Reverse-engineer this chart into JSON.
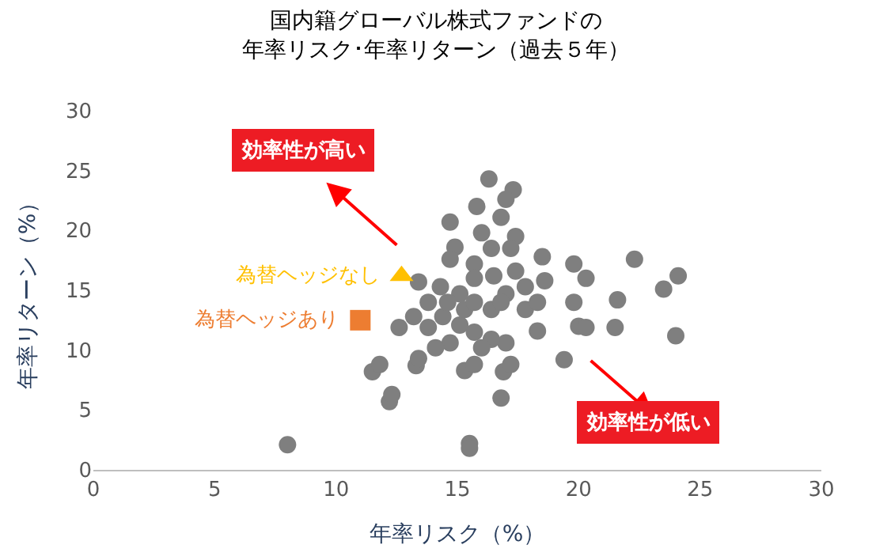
{
  "chart_data": {
    "type": "scatter",
    "title": "国内籍グローバル株式ファンドの",
    "subtitle": "年率リスク･年率リターン（過去５年）",
    "xlabel": "年率リスク（%）",
    "ylabel": "年率リターン（%）",
    "xlim": [
      0,
      30
    ],
    "xticks": [
      0,
      5,
      10,
      15,
      20,
      25,
      30
    ],
    "ylim": [
      0,
      30
    ],
    "yticks": [
      0,
      5,
      10,
      15,
      20,
      25,
      30
    ],
    "legend": false,
    "series": [
      {
        "color": "#7f7f7f",
        "marker": "circle",
        "x": [
          8.0,
          15.5,
          15.5,
          12.2,
          12.3,
          11.5,
          11.8,
          13.3,
          13.4,
          15.3,
          15.7,
          16.9,
          17.2,
          16.8,
          19.4,
          17.0,
          18.3,
          20.0,
          20.3,
          21.5,
          24.0,
          19.8,
          21.6,
          23.5,
          24.1,
          20.3,
          19.8,
          22.3,
          18.6,
          18.5,
          17.4,
          16.3,
          17.3,
          17.0,
          15.8,
          14.7,
          14.9,
          14.7,
          13.4,
          13.2,
          12.6,
          13.8,
          14.4,
          13.8,
          15.1,
          15.7,
          16.4,
          16.8,
          16.0,
          15.7,
          16.4,
          17.0,
          17.4,
          17.8,
          15.1,
          15.7,
          16.4,
          14.7,
          16.0,
          17.2,
          16.5,
          15.3,
          17.8,
          18.3,
          15.7,
          16.8,
          14.1,
          14.6,
          14.3
        ],
        "values": [
          2.1,
          2.2,
          1.8,
          5.7,
          6.3,
          8.2,
          8.8,
          8.7,
          9.3,
          8.3,
          8.8,
          8.2,
          8.8,
          6.0,
          9.2,
          10.6,
          11.6,
          12.0,
          11.9,
          11.9,
          11.2,
          14.0,
          14.2,
          15.1,
          16.2,
          16.0,
          17.2,
          17.6,
          15.8,
          17.8,
          19.5,
          24.3,
          23.4,
          22.6,
          22.0,
          20.7,
          18.6,
          17.6,
          15.7,
          12.8,
          11.9,
          11.9,
          12.8,
          14.0,
          14.7,
          17.2,
          18.5,
          21.1,
          19.8,
          16.0,
          13.4,
          14.7,
          16.6,
          13.4,
          12.1,
          11.5,
          10.9,
          10.6,
          10.2,
          18.5,
          16.2,
          13.4,
          15.3,
          14.0,
          14.0,
          14.0,
          10.2,
          14.0,
          15.3
        ]
      },
      {
        "name": "為替ヘッジなし",
        "color": "#ffc000",
        "marker": "triangle",
        "x": [
          12.7
        ],
        "values": [
          16.2
        ]
      },
      {
        "name": "為替ヘッジあり",
        "color": "#ed7d31",
        "marker": "square",
        "x": [
          11.0
        ],
        "values": [
          12.5
        ]
      }
    ],
    "annotations": [
      "効率性が高い",
      "効率性が低い"
    ]
  }
}
